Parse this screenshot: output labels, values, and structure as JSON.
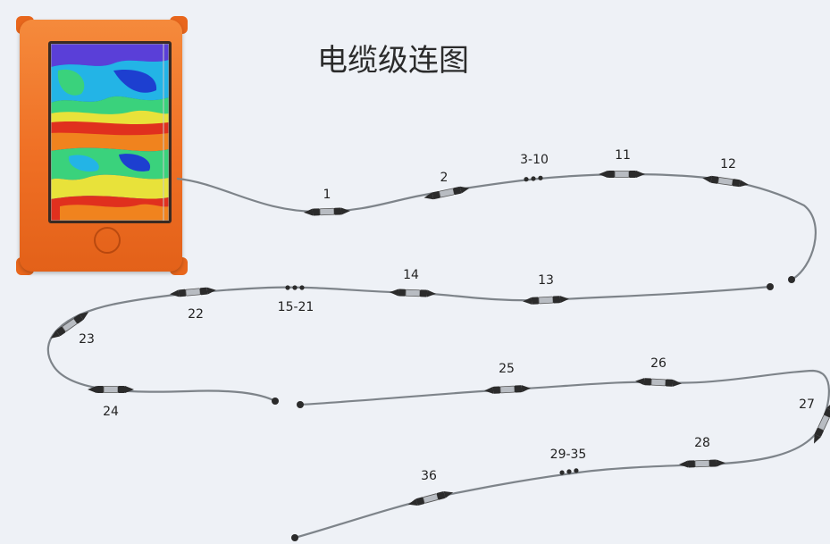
{
  "title": "电缆级连图",
  "device": {
    "color": "#ef6f24",
    "screen_colors": [
      "#1d3fd0",
      "#2aa0e8",
      "#3ad27c",
      "#e8e23a",
      "#f0831e",
      "#e0301e"
    ]
  },
  "cable": {
    "stroke_color": "#7e848a",
    "connector_color": "#2b2b2b"
  },
  "connectors": [
    {
      "label": "1"
    },
    {
      "label": "2"
    },
    {
      "label": "3-10"
    },
    {
      "label": "11"
    },
    {
      "label": "12"
    },
    {
      "label": "13"
    },
    {
      "label": "14"
    },
    {
      "label": "15-21"
    },
    {
      "label": "22"
    },
    {
      "label": "23"
    },
    {
      "label": "24"
    },
    {
      "label": "25"
    },
    {
      "label": "26"
    },
    {
      "label": "27"
    },
    {
      "label": "28"
    },
    {
      "label": "29-35"
    },
    {
      "label": "36"
    }
  ]
}
